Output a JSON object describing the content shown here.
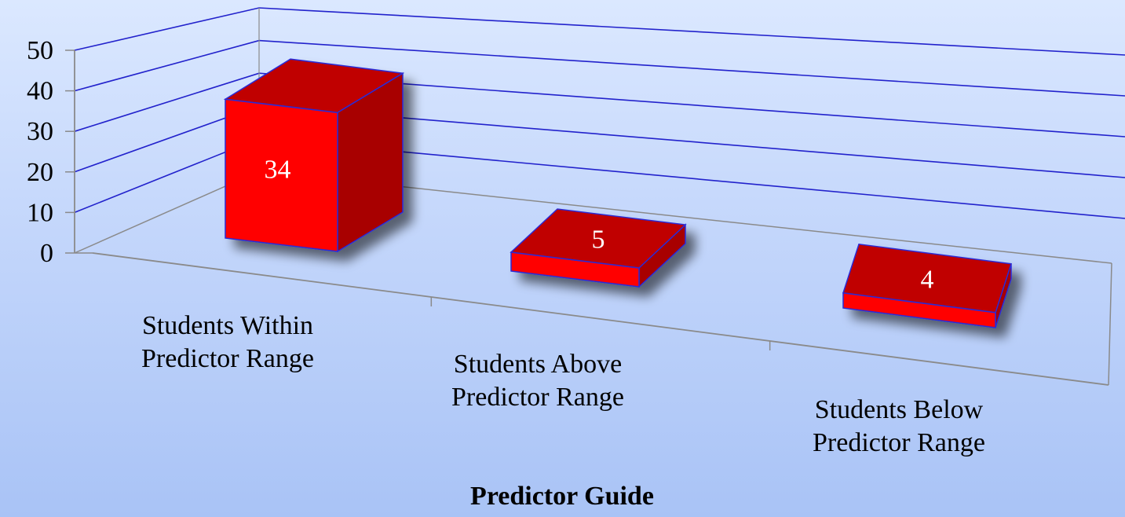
{
  "chart_data": {
    "type": "bar",
    "style": "3d",
    "categories": [
      [
        "Students Within",
        "Predictor Range"
      ],
      [
        "Students Above",
        "Predictor Range"
      ],
      [
        "Students Below",
        "Predictor Range"
      ]
    ],
    "values": [
      34,
      5,
      4
    ],
    "data_labels": [
      "34",
      "5",
      "4"
    ],
    "xlabel": "Predictor Guide",
    "ylabel": "",
    "ylim": [
      0,
      50
    ],
    "yticks": [
      "0",
      "10",
      "20",
      "30",
      "40",
      "50"
    ],
    "grid": true,
    "legend": "none",
    "colors": {
      "bar_front": "#ff0000",
      "bar_top": "#c00000",
      "bar_side": "#a80000",
      "bar_edge": "#2b2bd6",
      "grid": "#2222cc",
      "axis": "#8a8a8a"
    }
  }
}
